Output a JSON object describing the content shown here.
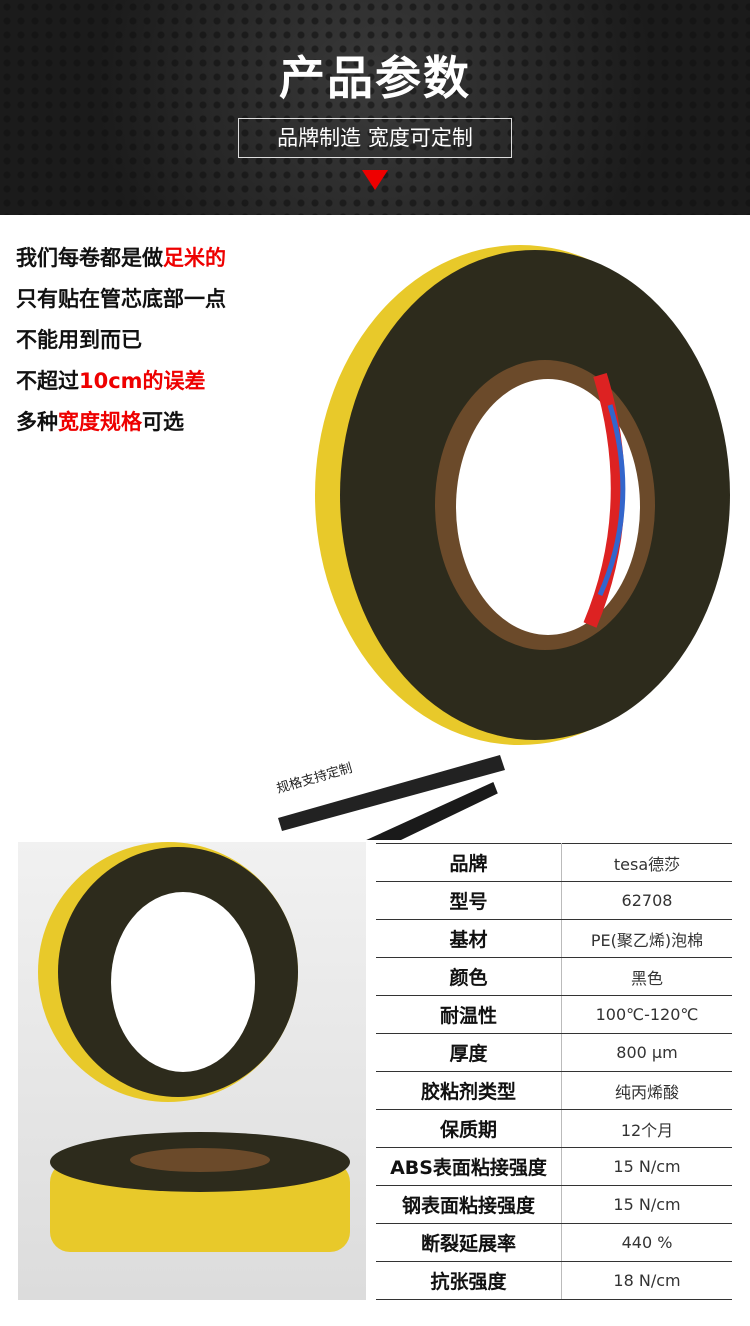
{
  "header": {
    "title": "产品参数",
    "subtitle": "品牌制造 宽度可定制"
  },
  "intro": {
    "lines": [
      [
        {
          "text": "我们每卷都是做",
          "red": false
        },
        {
          "text": "足米的",
          "red": true
        }
      ],
      [
        {
          "text": "只有贴在管芯底部一点",
          "red": false
        }
      ],
      [
        {
          "text": "不能用到而已",
          "red": false
        }
      ],
      [
        {
          "text": "不超过",
          "red": false
        },
        {
          "text": "10cm的误差",
          "red": true
        }
      ],
      [
        {
          "text": "多种",
          "red": false
        },
        {
          "text": "宽度规格",
          "red": true
        },
        {
          "text": "可选",
          "red": false
        }
      ]
    ]
  },
  "strip_label": "规格支持定制",
  "specs": {
    "rows": [
      [
        "品牌",
        "tesa德莎"
      ],
      [
        "型号",
        "62708"
      ],
      [
        "基材",
        "PE(聚乙烯)泡棉"
      ],
      [
        "颜色",
        "黑色"
      ],
      [
        "耐温性",
        "100℃-120℃"
      ],
      [
        "厚度",
        "800 µm"
      ],
      [
        "胶粘剂类型",
        "纯丙烯酸"
      ],
      [
        "保质期",
        "12个月"
      ],
      [
        "ABS表面粘接强度",
        "15 N/cm"
      ],
      [
        "钢表面粘接强度",
        "15 N/cm"
      ],
      [
        "断裂延展率",
        "440 %"
      ],
      [
        "抗张强度",
        "18 N/cm"
      ]
    ]
  }
}
